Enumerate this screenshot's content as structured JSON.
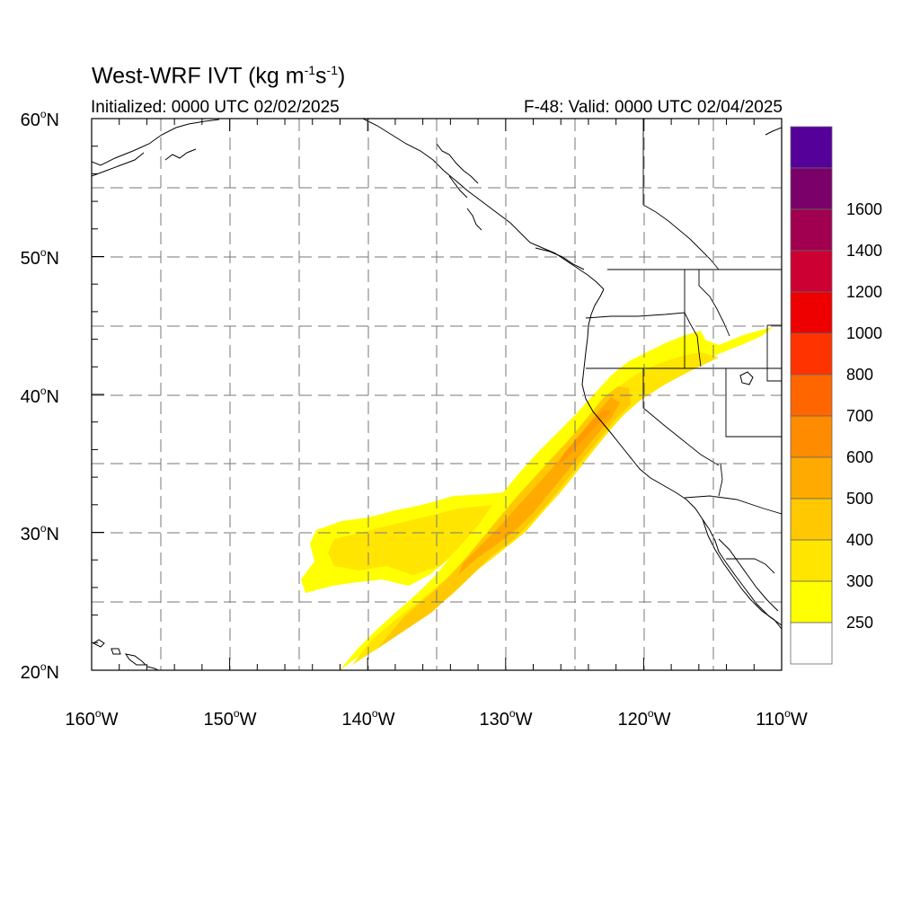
{
  "header": {
    "title_main": "West-WRF IVT (kg m",
    "title_exp1": "-1",
    "title_mid": "s",
    "title_exp2": "-1",
    "title_end": ")",
    "initialized": "Initialized: 0000 UTC 02/02/2025",
    "valid": "F-48: Valid: 0000 UTC 02/04/2025"
  },
  "map": {
    "lon_range": [
      -160,
      -110
    ],
    "lat_range": [
      20,
      60
    ],
    "lon_labels": [
      {
        "num": "160",
        "deg": "o",
        "dir": "W"
      },
      {
        "num": "150",
        "deg": "o",
        "dir": "W"
      },
      {
        "num": "140",
        "deg": "o",
        "dir": "W"
      },
      {
        "num": "130",
        "deg": "o",
        "dir": "W"
      },
      {
        "num": "120",
        "deg": "o",
        "dir": "W"
      },
      {
        "num": "110",
        "deg": "o",
        "dir": "W"
      }
    ],
    "lat_labels": [
      {
        "num": "60",
        "deg": "o",
        "dir": "N"
      },
      {
        "num": "50",
        "deg": "o",
        "dir": "N"
      },
      {
        "num": "40",
        "deg": "o",
        "dir": "N"
      },
      {
        "num": "30",
        "deg": "o",
        "dir": "N"
      },
      {
        "num": "20",
        "deg": "o",
        "dir": "N"
      }
    ]
  },
  "colorbar": {
    "colors": [
      "#ffffff",
      "#ffff00",
      "#ffe500",
      "#ffc800",
      "#ffaa00",
      "#ff8c00",
      "#ff6600",
      "#ff3300",
      "#ee0000",
      "#cc0033",
      "#a0004f",
      "#7a006a",
      "#550099"
    ],
    "labels": [
      "250",
      "300",
      "400",
      "500",
      "600",
      "700",
      "800",
      "1000",
      "1200",
      "1400",
      "1600"
    ]
  }
}
